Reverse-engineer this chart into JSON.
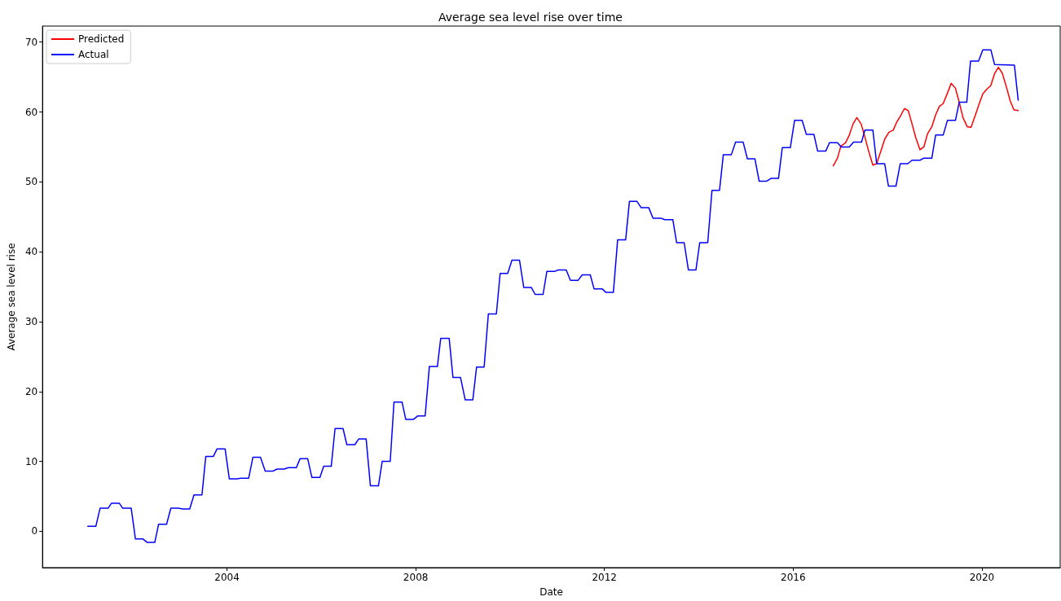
{
  "chart_data": {
    "type": "line",
    "title": "Average sea level rise over time",
    "xlabel": "Date",
    "ylabel": "Average sea level rise",
    "xlim": [
      2000.09,
      2021.66
    ],
    "ylim": [
      -5.2,
      72.3
    ],
    "xticks": [
      2004,
      2008,
      2012,
      2016,
      2020
    ],
    "yticks": [
      0,
      10,
      20,
      30,
      40,
      50,
      60,
      70
    ],
    "legend": "top left",
    "grid": false,
    "series": [
      {
        "name": "Predicted",
        "color": "#ff0000",
        "x": [
          2016.85,
          2016.94,
          2017.01,
          2017.11,
          2017.19,
          2017.27,
          2017.35,
          2017.44,
          2017.51,
          2017.6,
          2017.69,
          2017.77,
          2017.86,
          2017.94,
          2018.03,
          2018.12,
          2018.2,
          2018.28,
          2018.36,
          2018.44,
          2018.52,
          2018.6,
          2018.69,
          2018.77,
          2018.85,
          2018.94,
          2019.02,
          2019.1,
          2019.18,
          2019.27,
          2019.35,
          2019.44,
          2019.52,
          2019.6,
          2019.69,
          2019.77,
          2019.86,
          2019.94,
          2020.02,
          2020.11,
          2020.19,
          2020.27,
          2020.35,
          2020.43,
          2020.52,
          2020.6,
          2020.68,
          2020.77
        ],
        "values": [
          52.3,
          53.4,
          55.1,
          55.6,
          56.7,
          58.3,
          59.2,
          58.3,
          56.7,
          54.4,
          52.4,
          52.6,
          54.4,
          56.1,
          57.1,
          57.4,
          58.6,
          59.5,
          60.5,
          60.2,
          58.3,
          56.3,
          54.6,
          55.0,
          56.9,
          57.9,
          59.6,
          60.8,
          61.2,
          62.7,
          64.1,
          63.4,
          61.4,
          59.2,
          57.9,
          57.8,
          59.5,
          61.1,
          62.6,
          63.3,
          63.8,
          65.5,
          66.4,
          65.6,
          63.6,
          61.6,
          60.3,
          60.2
        ]
      },
      {
        "name": "Actual",
        "color": "#0000ff",
        "x": [
          2001.05,
          2001.22,
          2001.31,
          2001.48,
          2001.55,
          2001.72,
          2001.79,
          2001.97,
          2002.06,
          2002.22,
          2002.31,
          2002.47,
          2002.55,
          2002.72,
          2002.81,
          2002.97,
          2003.06,
          2003.21,
          2003.3,
          2003.47,
          2003.55,
          2003.71,
          2003.79,
          2003.96,
          2004.05,
          2004.21,
          2004.29,
          2004.46,
          2004.55,
          2004.71,
          2004.81,
          2004.97,
          2005.06,
          2005.21,
          2005.3,
          2005.47,
          2005.55,
          2005.71,
          2005.8,
          2005.97,
          2006.05,
          2006.21,
          2006.29,
          2006.46,
          2006.54,
          2006.71,
          2006.79,
          2006.95,
          2007.04,
          2007.21,
          2007.29,
          2007.46,
          2007.54,
          2007.71,
          2007.79,
          2007.95,
          2008.04,
          2008.2,
          2008.29,
          2008.46,
          2008.53,
          2008.71,
          2008.79,
          2008.95,
          2009.05,
          2009.21,
          2009.29,
          2009.45,
          2009.54,
          2009.71,
          2009.79,
          2009.95,
          2010.04,
          2010.2,
          2010.29,
          2010.45,
          2010.53,
          2010.7,
          2010.78,
          2010.95,
          2011.02,
          2011.19,
          2011.28,
          2011.44,
          2011.53,
          2011.7,
          2011.78,
          2011.95,
          2012.03,
          2012.19,
          2012.28,
          2012.45,
          2012.53,
          2012.69,
          2012.78,
          2012.94,
          2013.03,
          2013.2,
          2013.28,
          2013.45,
          2013.53,
          2013.69,
          2013.78,
          2013.94,
          2014.02,
          2014.19,
          2014.28,
          2014.44,
          2014.52,
          2014.69,
          2014.78,
          2014.94,
          2015.03,
          2015.19,
          2015.28,
          2015.44,
          2015.53,
          2015.69,
          2015.77,
          2015.94,
          2016.03,
          2016.19,
          2016.28,
          2016.44,
          2016.52,
          2016.69,
          2016.77,
          2016.94,
          2017.02,
          2017.19,
          2017.28,
          2017.45,
          2017.52,
          2017.69,
          2017.77,
          2017.94,
          2018.02,
          2018.18,
          2018.27,
          2018.43,
          2018.52,
          2018.69,
          2018.77,
          2018.94,
          2019.02,
          2019.18,
          2019.27,
          2019.44,
          2019.52,
          2019.68,
          2019.76,
          2019.93,
          2020.02,
          2020.19,
          2020.27,
          2020.69,
          2020.77
        ],
        "values": [
          0.7,
          0.7,
          3.3,
          3.3,
          4.0,
          4.0,
          3.3,
          3.3,
          -1.1,
          -1.1,
          -1.6,
          -1.6,
          1.0,
          1.0,
          3.3,
          3.3,
          3.2,
          3.2,
          5.2,
          5.2,
          10.7,
          10.7,
          11.8,
          11.8,
          7.5,
          7.5,
          7.6,
          7.6,
          10.6,
          10.6,
          8.6,
          8.6,
          8.9,
          8.9,
          9.1,
          9.1,
          10.4,
          10.4,
          7.7,
          7.7,
          9.3,
          9.3,
          14.7,
          14.7,
          12.4,
          12.4,
          13.2,
          13.2,
          6.5,
          6.5,
          10.0,
          10.0,
          18.5,
          18.5,
          16.0,
          16.0,
          16.5,
          16.5,
          23.6,
          23.6,
          27.6,
          27.6,
          22.0,
          22.0,
          18.8,
          18.8,
          23.5,
          23.5,
          31.1,
          31.1,
          36.9,
          36.9,
          38.8,
          38.8,
          34.9,
          34.9,
          33.9,
          33.9,
          37.2,
          37.2,
          37.4,
          37.4,
          35.9,
          35.9,
          36.7,
          36.7,
          34.7,
          34.7,
          34.2,
          34.2,
          41.7,
          41.7,
          47.2,
          47.2,
          46.3,
          46.3,
          44.8,
          44.8,
          44.6,
          44.6,
          41.3,
          41.3,
          37.4,
          37.4,
          41.3,
          41.3,
          48.8,
          48.8,
          53.9,
          53.9,
          55.7,
          55.7,
          53.3,
          53.3,
          50.1,
          50.1,
          50.5,
          50.5,
          54.9,
          54.9,
          58.8,
          58.8,
          56.8,
          56.8,
          54.4,
          54.4,
          55.6,
          55.6,
          55.0,
          55.0,
          55.7,
          55.7,
          57.4,
          57.4,
          52.6,
          52.6,
          49.4,
          49.4,
          52.6,
          52.6,
          53.1,
          53.1,
          53.4,
          53.4,
          56.7,
          56.7,
          58.8,
          58.8,
          61.4,
          61.4,
          67.3,
          67.3,
          68.9,
          68.9,
          66.8,
          66.7,
          61.7
        ]
      }
    ]
  }
}
